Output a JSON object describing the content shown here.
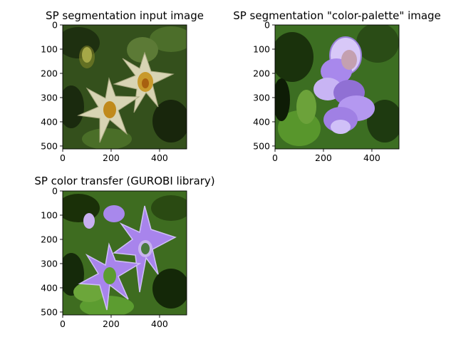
{
  "chart_data": [
    {
      "type": "image",
      "title": "SP segmentation input image",
      "xlabel": "",
      "ylabel": "",
      "xlim": [
        0,
        512
      ],
      "ylim": [
        512,
        0
      ],
      "xticks": [
        0,
        200,
        400
      ],
      "yticks": [
        0,
        100,
        200,
        300,
        400,
        500
      ],
      "image_content": "superpixel segmentation of white/cream star-shaped flowers with orange-brown centers on dark green foliage",
      "palette": {
        "background": "#34501c",
        "dark": "#16260c",
        "petal": "#d8d4b4",
        "center": "#c08a1c"
      }
    },
    {
      "type": "image",
      "title": "SP segmentation \"color-palette\" image",
      "xlabel": "",
      "ylabel": "",
      "xlim": [
        0,
        512
      ],
      "ylim": [
        512,
        0
      ],
      "xticks": [
        0,
        200,
        400
      ],
      "yticks": [
        0,
        100,
        200,
        300,
        400,
        500
      ],
      "image_content": "superpixel segmentation of a purple/lavender flower cluster on bright green foliage",
      "palette": {
        "background": "#3c6e22",
        "dark": "#1a320c",
        "petal": "#a888ec",
        "petal_light": "#d8c8f8"
      }
    },
    {
      "type": "image",
      "title": "SP color transfer (GUROBI library)",
      "xlabel": "",
      "ylabel": "",
      "xlim": [
        0,
        512
      ],
      "ylim": [
        512,
        0
      ],
      "xticks": [
        0,
        200,
        400
      ],
      "yticks": [
        0,
        100,
        200,
        300,
        400,
        500
      ],
      "image_content": "input image recolored with the palette image colors: purple star-shaped flowers with green centers on green foliage",
      "palette": {
        "background": "#3e6c20",
        "dark": "#152a0a",
        "petal": "#a884ec",
        "center": "#5c9c30"
      }
    }
  ]
}
